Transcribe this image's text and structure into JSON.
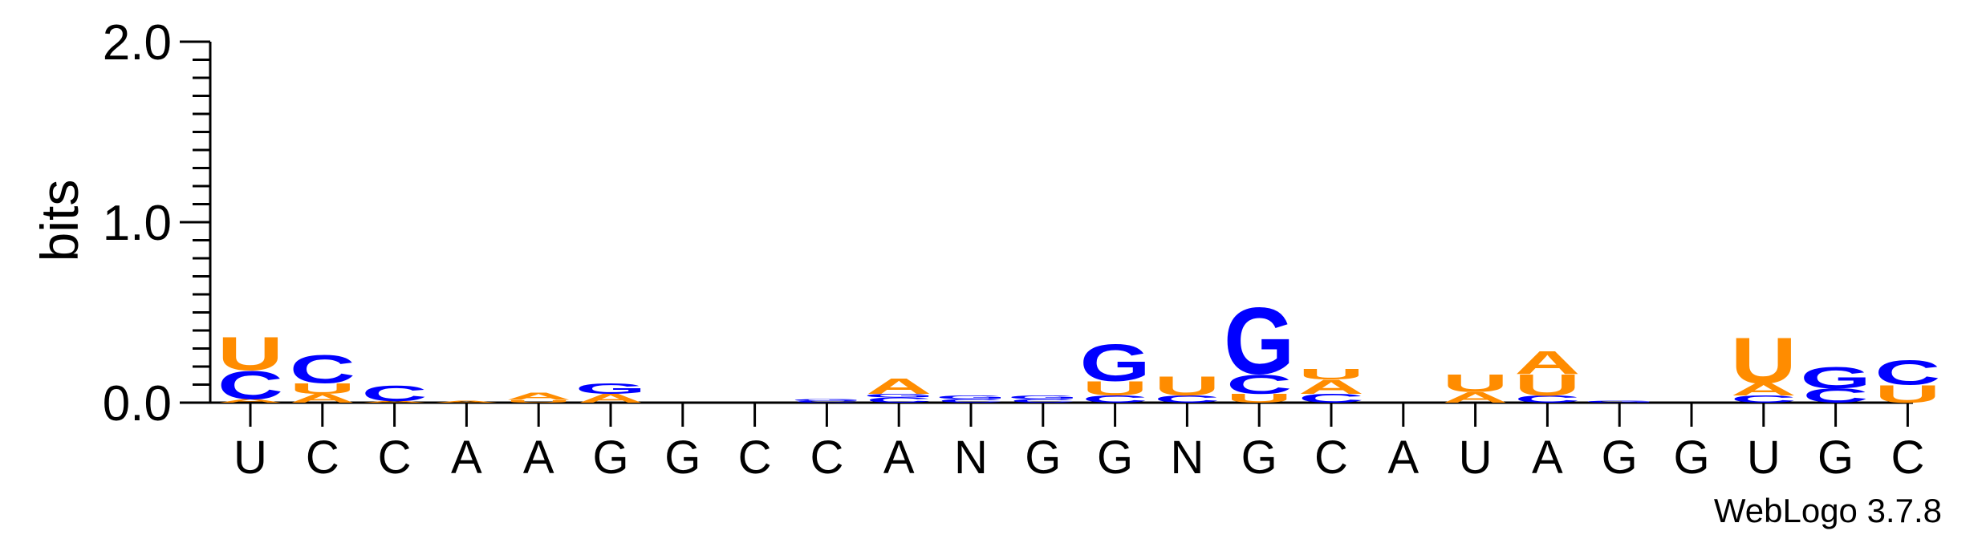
{
  "chart_data": {
    "type": "sequence-logo",
    "ylabel": "bits",
    "ylim": [
      0,
      2.0
    ],
    "yticks": [
      {
        "value": 0.0,
        "label": "0.0"
      },
      {
        "value": 1.0,
        "label": "1.0"
      },
      {
        "value": 2.0,
        "label": "2.0"
      }
    ],
    "colors": {
      "A": "#ff8c00",
      "U": "#ff8c00",
      "C": "#0000ff",
      "G": "#0000ff"
    },
    "positions": [
      {
        "label": "U",
        "stack": [
          [
            "A",
            0.02
          ],
          [
            "C",
            0.16
          ],
          [
            "U",
            0.19
          ]
        ]
      },
      {
        "label": "C",
        "stack": [
          [
            "A",
            0.05
          ],
          [
            "U",
            0.06
          ],
          [
            "C",
            0.16
          ]
        ]
      },
      {
        "label": "C",
        "stack": [
          [
            "A",
            0.01
          ],
          [
            "C",
            0.09
          ]
        ]
      },
      {
        "label": "A",
        "stack": [
          [
            "A",
            0.01
          ]
        ]
      },
      {
        "label": "A",
        "stack": [
          [
            "U",
            0.015
          ],
          [
            "A",
            0.04
          ]
        ]
      },
      {
        "label": "G",
        "stack": [
          [
            "A",
            0.05
          ],
          [
            "G",
            0.06
          ]
        ]
      },
      {
        "label": "G",
        "stack": []
      },
      {
        "label": "C",
        "stack": []
      },
      {
        "label": "C",
        "stack": [
          [
            "C",
            0.01
          ],
          [
            "G",
            0.01
          ]
        ]
      },
      {
        "label": "A",
        "stack": [
          [
            "C",
            0.03
          ],
          [
            "G",
            0.02
          ],
          [
            "A",
            0.09
          ]
        ]
      },
      {
        "label": "N",
        "stack": [
          [
            "C",
            0.02
          ],
          [
            "G",
            0.02
          ]
        ]
      },
      {
        "label": "G",
        "stack": [
          [
            "C",
            0.02
          ],
          [
            "G",
            0.02
          ]
        ]
      },
      {
        "label": "G",
        "stack": [
          [
            "C",
            0.04
          ],
          [
            "U",
            0.08
          ],
          [
            "G",
            0.21
          ]
        ]
      },
      {
        "label": "N",
        "stack": [
          [
            "C",
            0.04
          ],
          [
            "U",
            0.11
          ]
        ]
      },
      {
        "label": "G",
        "stack": [
          [
            "U",
            0.05
          ],
          [
            "C",
            0.11
          ],
          [
            "G",
            0.38
          ]
        ]
      },
      {
        "label": "C",
        "stack": [
          [
            "C",
            0.05
          ],
          [
            "A",
            0.08
          ],
          [
            "U",
            0.06
          ]
        ]
      },
      {
        "label": "A",
        "stack": []
      },
      {
        "label": "U",
        "stack": [
          [
            "A",
            0.06
          ],
          [
            "U",
            0.1
          ]
        ]
      },
      {
        "label": "A",
        "stack": [
          [
            "C",
            0.04
          ],
          [
            "U",
            0.12
          ],
          [
            "A",
            0.13
          ]
        ]
      },
      {
        "label": "G",
        "stack": [
          [
            "G",
            0.01
          ]
        ]
      },
      {
        "label": "G",
        "stack": []
      },
      {
        "label": "U",
        "stack": [
          [
            "C",
            0.04
          ],
          [
            "A",
            0.07
          ],
          [
            "U",
            0.26
          ]
        ]
      },
      {
        "label": "G",
        "stack": [
          [
            "C",
            0.08
          ],
          [
            "G",
            0.12
          ]
        ]
      },
      {
        "label": "C",
        "stack": [
          [
            "U",
            0.1
          ],
          [
            "C",
            0.14
          ]
        ]
      }
    ]
  },
  "footer": {
    "version": "WebLogo 3.7.8"
  }
}
